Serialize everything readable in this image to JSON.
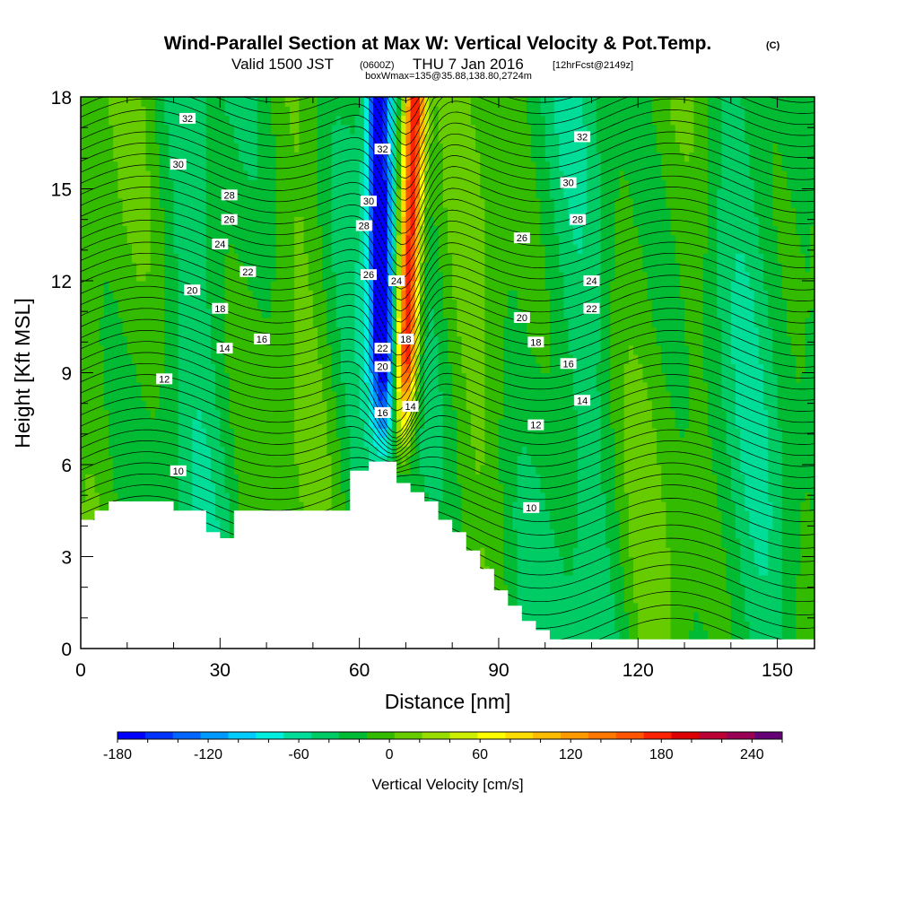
{
  "title": {
    "main": "Wind-Parallel Section at Max W: Vertical Velocity & Pot.Temp.",
    "copyright": "(C)",
    "valid_prefix": "Valid 1500 JST",
    "valid_utc": "(0600Z)",
    "valid_date": "THU 7 Jan 2016",
    "forecast": "[12hrFcst@2149z]",
    "boxwmax": "boxWmax=135@35.88,138.80,2724m"
  },
  "chart_data": {
    "type": "cross-section",
    "xlabel": "Distance [nm]",
    "ylabel": "Height [Kft MSL]",
    "xlim": [
      0,
      158
    ],
    "ylim": [
      0,
      18
    ],
    "x_ticks": [
      0,
      30,
      60,
      90,
      120,
      150
    ],
    "y_ticks": [
      0,
      3,
      6,
      9,
      12,
      15,
      18
    ],
    "x_tick_labels": [
      "0",
      "30",
      "60",
      "90",
      "120",
      "150"
    ],
    "y_tick_labels": [
      "0",
      "3",
      "6",
      "9",
      "12",
      "15",
      "18"
    ],
    "colorbar": {
      "title": "Vertical Velocity [cm/s]",
      "min": -180,
      "max": 260,
      "step": 20,
      "tick_values": [
        -180,
        -120,
        -60,
        0,
        60,
        120,
        180,
        240
      ],
      "tick_labels": [
        "-180",
        "-120",
        "-60",
        "0",
        "60",
        "120",
        "180",
        "240"
      ],
      "colors": [
        "#0000ff",
        "#0033ff",
        "#0066ff",
        "#0099ff",
        "#00ccff",
        "#00eedd",
        "#00dd99",
        "#00cc66",
        "#00bb33",
        "#33bb00",
        "#66cc00",
        "#99dd00",
        "#ccee00",
        "#ffff00",
        "#ffdd00",
        "#ffbb00",
        "#ff9900",
        "#ff7700",
        "#ff5500",
        "#ff2200",
        "#dd0000",
        "#bb0033",
        "#990055",
        "#660077"
      ]
    },
    "terrain_profile": {
      "x": [
        0,
        3,
        3,
        6,
        6,
        20,
        20,
        27,
        27,
        30,
        30,
        33,
        33,
        45,
        45,
        58,
        58,
        62,
        62,
        68,
        68,
        71,
        71,
        74,
        74,
        77,
        77,
        80,
        80,
        83,
        83,
        86,
        86,
        89,
        89,
        92,
        92,
        95,
        95,
        98,
        98,
        101,
        101,
        158
      ],
      "height_kft": [
        4.2,
        4.2,
        4.5,
        4.5,
        4.8,
        4.8,
        4.5,
        4.5,
        3.8,
        3.8,
        3.6,
        3.6,
        4.5,
        4.5,
        4.5,
        4.5,
        5.8,
        5.8,
        6.1,
        6.1,
        5.4,
        5.4,
        5.1,
        5.1,
        4.8,
        4.8,
        4.2,
        4.2,
        3.8,
        3.8,
        3.2,
        3.2,
        2.6,
        2.6,
        1.9,
        1.9,
        1.4,
        1.4,
        0.9,
        0.9,
        0.6,
        0.6,
        0.3,
        0.3
      ]
    },
    "updraft_core": {
      "x_at_top": 72,
      "x_at_bottom": 68,
      "max_cm_s": 240,
      "description_free": true
    },
    "downdraft_core": {
      "x_at_top": 64,
      "x_at_bottom": 66,
      "min_cm_s": -180
    },
    "theta_contours_C": [
      10,
      12,
      14,
      16,
      18,
      20,
      22,
      24,
      26,
      28,
      30,
      32
    ],
    "contour_labels": [
      {
        "text": "32",
        "x": 23,
        "y": 17.3
      },
      {
        "text": "30",
        "x": 21,
        "y": 15.8
      },
      {
        "text": "28",
        "x": 32,
        "y": 14.8
      },
      {
        "text": "26",
        "x": 32,
        "y": 14.0
      },
      {
        "text": "24",
        "x": 30,
        "y": 13.2
      },
      {
        "text": "22",
        "x": 36,
        "y": 12.3
      },
      {
        "text": "20",
        "x": 24,
        "y": 11.7
      },
      {
        "text": "18",
        "x": 30,
        "y": 11.1
      },
      {
        "text": "16",
        "x": 39,
        "y": 10.1
      },
      {
        "text": "14",
        "x": 31,
        "y": 9.8
      },
      {
        "text": "12",
        "x": 18,
        "y": 8.8
      },
      {
        "text": "10",
        "x": 21,
        "y": 5.8
      },
      {
        "text": "32",
        "x": 65,
        "y": 16.3
      },
      {
        "text": "30",
        "x": 62,
        "y": 14.6
      },
      {
        "text": "28",
        "x": 61,
        "y": 13.8
      },
      {
        "text": "26",
        "x": 62,
        "y": 12.2
      },
      {
        "text": "24",
        "x": 68,
        "y": 12.0
      },
      {
        "text": "22",
        "x": 65,
        "y": 9.8
      },
      {
        "text": "20",
        "x": 65,
        "y": 9.2
      },
      {
        "text": "18",
        "x": 70,
        "y": 10.1
      },
      {
        "text": "16",
        "x": 65,
        "y": 7.7
      },
      {
        "text": "14",
        "x": 71,
        "y": 7.9
      },
      {
        "text": "32",
        "x": 108,
        "y": 16.7
      },
      {
        "text": "30",
        "x": 105,
        "y": 15.2
      },
      {
        "text": "28",
        "x": 107,
        "y": 14.0
      },
      {
        "text": "26",
        "x": 95,
        "y": 13.4
      },
      {
        "text": "24",
        "x": 110,
        "y": 12.0
      },
      {
        "text": "22",
        "x": 110,
        "y": 11.1
      },
      {
        "text": "20",
        "x": 95,
        "y": 10.8
      },
      {
        "text": "18",
        "x": 98,
        "y": 10.0
      },
      {
        "text": "16",
        "x": 105,
        "y": 9.3
      },
      {
        "text": "14",
        "x": 108,
        "y": 8.1
      },
      {
        "text": "12",
        "x": 98,
        "y": 7.3
      },
      {
        "text": "10",
        "x": 97,
        "y": 4.6
      }
    ]
  }
}
